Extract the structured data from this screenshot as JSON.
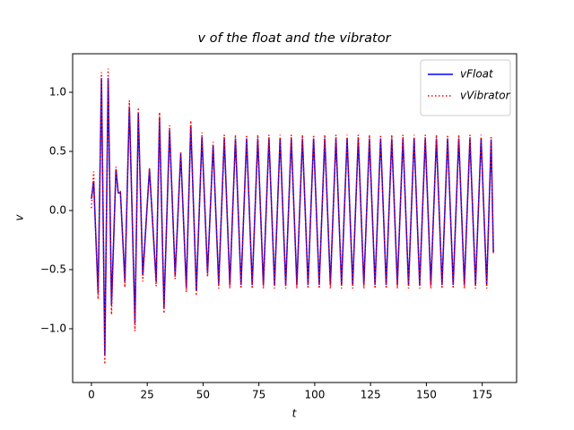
{
  "chart_data": {
    "type": "line",
    "title": "v of the float and the vibrator",
    "x_label": "t",
    "y_label": "v",
    "x": [
      0,
      1,
      3,
      4.5,
      6,
      7.5,
      9,
      11,
      12,
      13,
      15,
      17,
      19.5,
      21,
      23,
      26,
      29,
      30.5,
      32.5,
      35,
      37.5,
      40,
      42.5,
      44.5,
      47,
      49.5,
      52,
      54.5,
      57,
      59.5,
      62,
      64.5,
      67,
      69.5,
      72,
      74.5,
      77,
      79.5,
      82,
      84.5,
      87,
      89.5,
      92,
      94.5,
      97,
      99.5,
      102,
      104.5,
      107,
      109.5,
      112,
      114.5,
      117,
      119.5,
      122,
      124.5,
      127,
      129.5,
      132,
      134.5,
      137,
      139.5,
      142,
      144.5,
      147,
      149.5,
      152,
      154.5,
      157,
      159.5,
      162,
      164.5,
      167,
      169.5,
      172,
      174.5,
      177,
      179,
      180
    ],
    "series": [
      {
        "name": "vFloat",
        "color": "#0000ff",
        "style": "solid",
        "values": [
          0.1,
          0.25,
          -0.7,
          1.12,
          -1.22,
          1.12,
          -0.8,
          0.35,
          0.15,
          0.15,
          -0.6,
          0.88,
          -0.95,
          0.82,
          -0.55,
          0.35,
          -0.6,
          0.78,
          -0.82,
          0.68,
          -0.55,
          0.48,
          -0.65,
          0.72,
          -0.68,
          0.62,
          -0.53,
          0.55,
          -0.62,
          0.61,
          -0.63,
          0.61,
          -0.63,
          0.61,
          -0.63,
          0.61,
          -0.63,
          0.61,
          -0.63,
          0.61,
          -0.63,
          0.61,
          -0.63,
          0.61,
          -0.63,
          0.61,
          -0.63,
          0.61,
          -0.63,
          0.61,
          -0.63,
          0.61,
          -0.63,
          0.61,
          -0.63,
          0.61,
          -0.63,
          0.61,
          -0.63,
          0.61,
          -0.63,
          0.61,
          -0.63,
          0.61,
          -0.63,
          0.61,
          -0.63,
          0.61,
          -0.63,
          0.61,
          -0.63,
          0.61,
          -0.63,
          0.61,
          -0.63,
          0.61,
          -0.63,
          0.6,
          -0.35
        ]
      },
      {
        "name": "vVibrator",
        "color": "#ff0000",
        "style": "dotted",
        "values": [
          0.02,
          0.33,
          -0.75,
          1.17,
          -1.3,
          1.2,
          -0.88,
          0.37,
          0.15,
          0.16,
          -0.65,
          0.93,
          -1.02,
          0.87,
          -0.6,
          0.36,
          -0.64,
          0.83,
          -0.87,
          0.72,
          -0.58,
          0.5,
          -0.69,
          0.76,
          -0.72,
          0.66,
          -0.56,
          0.58,
          -0.66,
          0.64,
          -0.66,
          0.64,
          -0.66,
          0.64,
          -0.66,
          0.64,
          -0.66,
          0.64,
          -0.66,
          0.64,
          -0.66,
          0.64,
          -0.66,
          0.64,
          -0.66,
          0.64,
          -0.66,
          0.64,
          -0.66,
          0.64,
          -0.66,
          0.64,
          -0.66,
          0.64,
          -0.66,
          0.64,
          -0.66,
          0.64,
          -0.66,
          0.64,
          -0.66,
          0.64,
          -0.66,
          0.64,
          -0.66,
          0.64,
          -0.66,
          0.64,
          -0.66,
          0.64,
          -0.66,
          0.64,
          -0.66,
          0.64,
          -0.66,
          0.64,
          -0.66,
          0.63,
          -0.36
        ]
      }
    ],
    "xlim": [
      -8.4,
      190.4
    ],
    "ylim": [
      -1.455,
      1.326
    ],
    "xticks": [
      0,
      25,
      50,
      75,
      100,
      125,
      150,
      175
    ],
    "yticks": [
      {
        "value": -1.0,
        "label": "−1.0"
      },
      {
        "value": -0.5,
        "label": "−0.5"
      },
      {
        "value": 0.0,
        "label": "0.0"
      },
      0.5,
      {
        "value": 1.0,
        "label": "1.0"
      }
    ],
    "grid": false,
    "legend": "upper right"
  }
}
